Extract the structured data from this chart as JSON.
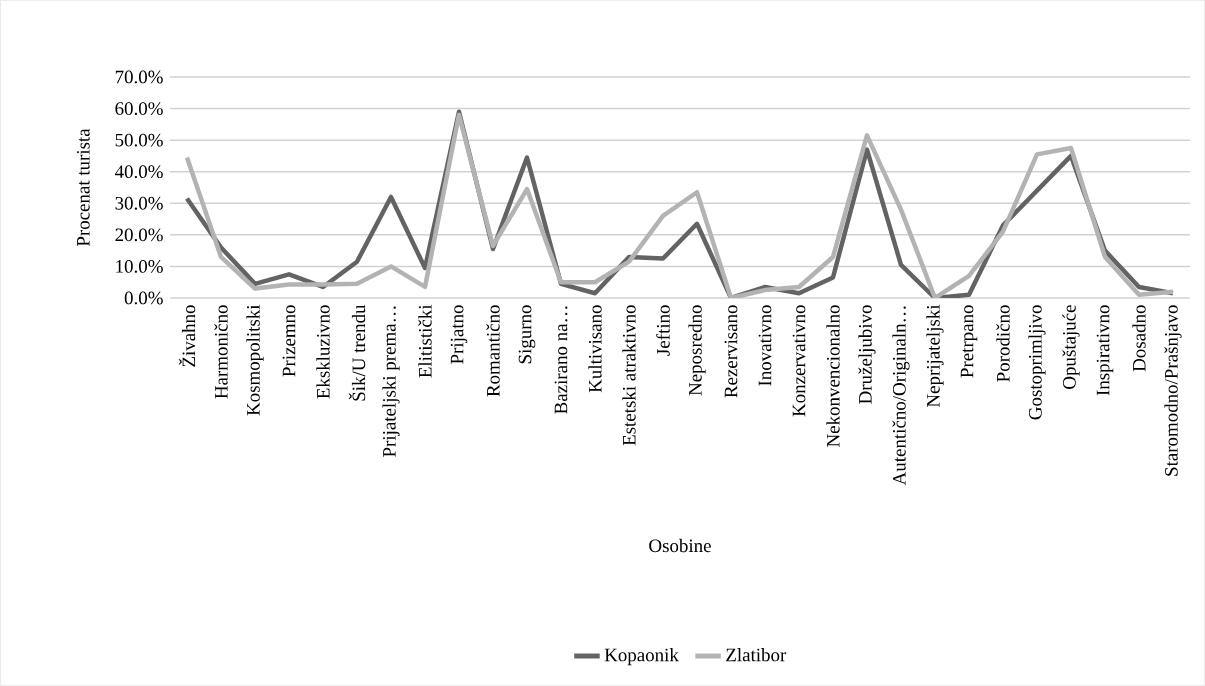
{
  "chart_data": {
    "type": "line",
    "xlabel": "Osobine",
    "ylabel": "Procenat turista",
    "categories": [
      "Živahno",
      "Harmonično",
      "Kosmopolitski",
      "Prizemno",
      "Ekskluzivno",
      "Šik/U trendu",
      "Prijateljski prema…",
      "Elitistički",
      "Prijatno",
      "Romantično",
      "Sigurno",
      "Bazirano na…",
      "Kultivisano",
      "Estetski atraktivno",
      "Jeftino",
      "Neposredno",
      "Rezervisano",
      "Inovativno",
      "Konzervativno",
      "Nekonvencionalno",
      "Druželjubivo",
      "Autentično/Originaln…",
      "Neprijateljski",
      "Pretrpano",
      "Porodično",
      "Gostoprimljivo",
      "Opuštajuće",
      "Inspirativno",
      "Dosadno",
      "Staromodno/Prašnjavo"
    ],
    "series": [
      {
        "name": "Kopaonik",
        "color": "#636363",
        "values": [
          31.5,
          16,
          4.5,
          7.5,
          3.5,
          11.5,
          32,
          9.5,
          59,
          15.5,
          44.5,
          4.5,
          1.5,
          13,
          12.5,
          23.5,
          0,
          3.5,
          1.5,
          6.5,
          47,
          10.5,
          0,
          1,
          23,
          34,
          45,
          15,
          3.5,
          1.5
        ]
      },
      {
        "name": "Zlatibor",
        "color": "#b3b3b3",
        "values": [
          44.5,
          13,
          3,
          4.3,
          4.3,
          4.5,
          10,
          3.5,
          58,
          16.5,
          34.5,
          5,
          5,
          11.5,
          26,
          33.5,
          0,
          2.5,
          3.5,
          13,
          51.5,
          28,
          0,
          7,
          21,
          45.5,
          47.5,
          13,
          1,
          2
        ]
      }
    ],
    "ylim": [
      0,
      70
    ],
    "yticks": [
      {
        "value": 0,
        "label": "0.0%"
      },
      {
        "value": 10,
        "label": "10.0%"
      },
      {
        "value": 20,
        "label": "20.0%"
      },
      {
        "value": 30,
        "label": "30.0%"
      },
      {
        "value": 40,
        "label": "40.0%"
      },
      {
        "value": 50,
        "label": "50.0%"
      },
      {
        "value": 60,
        "label": "60.0%"
      },
      {
        "value": 70,
        "label": "70.0%"
      }
    ],
    "grid": "y",
    "legend": "bottom",
    "marker": "none",
    "line_style": "solid"
  }
}
